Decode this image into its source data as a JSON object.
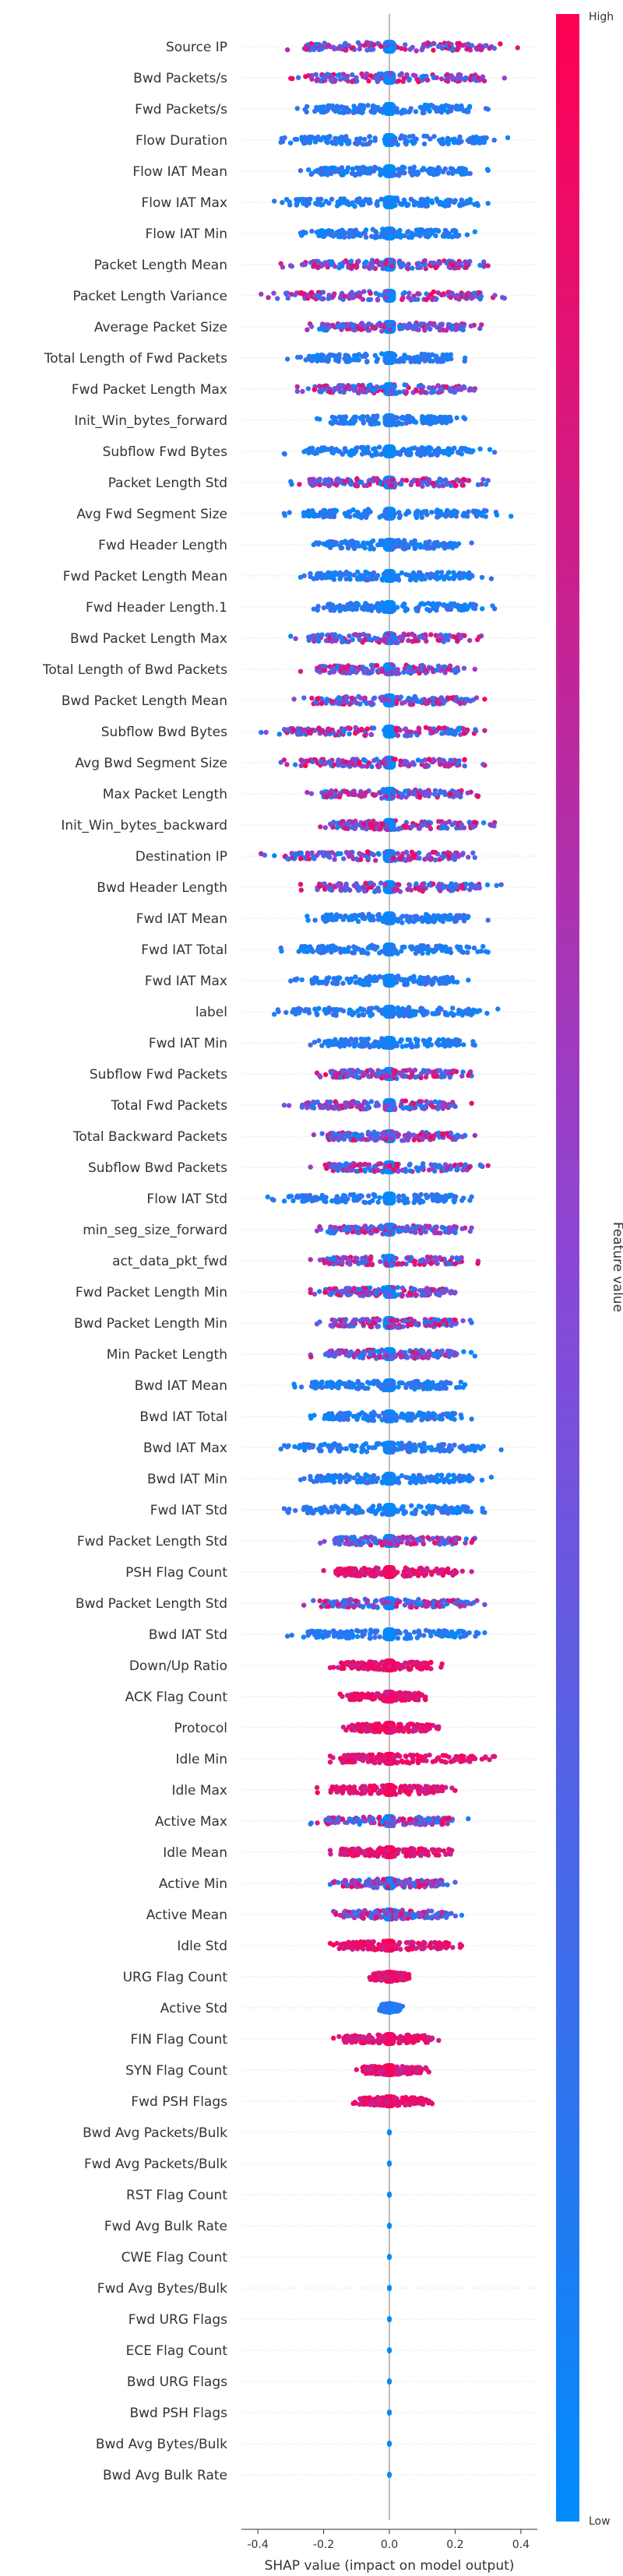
{
  "chart_data": {
    "type": "scatter",
    "subtype": "shap-beeswarm-summary",
    "xlabel": "SHAP value (impact on model output)",
    "xlim": [
      -0.45,
      0.45
    ],
    "xticks": [
      -0.4,
      -0.2,
      0.0,
      0.2,
      0.4
    ],
    "xtick_labels": [
      "-0.4",
      "-0.2",
      "0.0",
      "0.2",
      "0.4"
    ],
    "colorbar": {
      "label": "Feature value",
      "high_label": "High",
      "low_label": "Low",
      "low_color": "#008bfb",
      "high_color": "#ff0052"
    },
    "zero_line": true,
    "features": [
      {
        "name": "Source IP",
        "min": -0.31,
        "max": 0.39,
        "dom": "mixed"
      },
      {
        "name": "Bwd Packets/s",
        "min": -0.3,
        "max": 0.35,
        "dom": "mixed"
      },
      {
        "name": "Fwd Packets/s",
        "min": -0.28,
        "max": 0.3,
        "dom": "low"
      },
      {
        "name": "Flow Duration",
        "min": -0.33,
        "max": 0.36,
        "dom": "low"
      },
      {
        "name": "Flow IAT Mean",
        "min": -0.27,
        "max": 0.3,
        "dom": "low"
      },
      {
        "name": "Flow IAT Max",
        "min": -0.35,
        "max": 0.3,
        "dom": "low"
      },
      {
        "name": "Flow IAT Min",
        "min": -0.27,
        "max": 0.26,
        "dom": "low"
      },
      {
        "name": "Packet Length Mean",
        "min": -0.33,
        "max": 0.3,
        "dom": "mixed"
      },
      {
        "name": "Packet Length Variance",
        "min": -0.39,
        "max": 0.35,
        "dom": "mixed"
      },
      {
        "name": "Average Packet Size",
        "min": -0.25,
        "max": 0.28,
        "dom": "mixed"
      },
      {
        "name": "Total Length of Fwd Packets",
        "min": -0.31,
        "max": 0.23,
        "dom": "low"
      },
      {
        "name": "Fwd Packet Length Max",
        "min": -0.28,
        "max": 0.26,
        "dom": "mixed"
      },
      {
        "name": "Init_Win_bytes_forward",
        "min": -0.22,
        "max": 0.23,
        "dom": "low"
      },
      {
        "name": "Subflow Fwd Bytes",
        "min": -0.32,
        "max": 0.32,
        "dom": "low"
      },
      {
        "name": "Packet Length Std",
        "min": -0.3,
        "max": 0.3,
        "dom": "mixed"
      },
      {
        "name": "Avg Fwd Segment Size",
        "min": -0.32,
        "max": 0.37,
        "dom": "low"
      },
      {
        "name": "Fwd Header Length",
        "min": -0.23,
        "max": 0.25,
        "dom": "low"
      },
      {
        "name": "Fwd Packet Length Mean",
        "min": -0.27,
        "max": 0.31,
        "dom": "low"
      },
      {
        "name": "Fwd Header Length.1",
        "min": -0.23,
        "max": 0.32,
        "dom": "low"
      },
      {
        "name": "Bwd Packet Length Max",
        "min": -0.3,
        "max": 0.28,
        "dom": "mixed"
      },
      {
        "name": "Total Length of Bwd Packets",
        "min": -0.27,
        "max": 0.26,
        "dom": "mixed"
      },
      {
        "name": "Bwd Packet Length Mean",
        "min": -0.29,
        "max": 0.29,
        "dom": "mixed"
      },
      {
        "name": "Subflow Bwd Bytes",
        "min": -0.39,
        "max": 0.29,
        "dom": "mixed"
      },
      {
        "name": "Avg Bwd Segment Size",
        "min": -0.33,
        "max": 0.29,
        "dom": "mixed"
      },
      {
        "name": "Max Packet Length",
        "min": -0.25,
        "max": 0.27,
        "dom": "mixed"
      },
      {
        "name": "Init_Win_bytes_backward",
        "min": -0.21,
        "max": 0.32,
        "dom": "mixed"
      },
      {
        "name": "Destination IP",
        "min": -0.39,
        "max": 0.26,
        "dom": "mixed"
      },
      {
        "name": "Bwd Header Length",
        "min": -0.27,
        "max": 0.34,
        "dom": "mixed"
      },
      {
        "name": "Fwd IAT Mean",
        "min": -0.25,
        "max": 0.3,
        "dom": "low"
      },
      {
        "name": "Fwd IAT Total",
        "min": -0.33,
        "max": 0.3,
        "dom": "low"
      },
      {
        "name": "Fwd IAT Max",
        "min": -0.3,
        "max": 0.24,
        "dom": "low"
      },
      {
        "name": "label",
        "min": -0.35,
        "max": 0.33,
        "dom": "low"
      },
      {
        "name": "Fwd IAT Min",
        "min": -0.24,
        "max": 0.26,
        "dom": "low"
      },
      {
        "name": "Subflow Fwd Packets",
        "min": -0.22,
        "max": 0.25,
        "dom": "mixed"
      },
      {
        "name": "Total Fwd Packets",
        "min": -0.32,
        "max": 0.25,
        "dom": "mixed"
      },
      {
        "name": "Total Backward Packets",
        "min": -0.23,
        "max": 0.26,
        "dom": "mixed"
      },
      {
        "name": "Subflow Bwd Packets",
        "min": -0.24,
        "max": 0.3,
        "dom": "mixed"
      },
      {
        "name": "Flow IAT Std",
        "min": -0.37,
        "max": 0.25,
        "dom": "low"
      },
      {
        "name": "min_seg_size_forward",
        "min": -0.22,
        "max": 0.25,
        "dom": "mixed"
      },
      {
        "name": "act_data_pkt_fwd",
        "min": -0.24,
        "max": 0.27,
        "dom": "mixed"
      },
      {
        "name": "Fwd Packet Length Min",
        "min": -0.24,
        "max": 0.2,
        "dom": "mixed"
      },
      {
        "name": "Bwd Packet Length Min",
        "min": -0.22,
        "max": 0.25,
        "dom": "mixed"
      },
      {
        "name": "Min Packet Length",
        "min": -0.24,
        "max": 0.26,
        "dom": "mixed"
      },
      {
        "name": "Bwd IAT Mean",
        "min": -0.29,
        "max": 0.23,
        "dom": "low"
      },
      {
        "name": "Bwd IAT Total",
        "min": -0.24,
        "max": 0.25,
        "dom": "low"
      },
      {
        "name": "Bwd IAT Max",
        "min": -0.33,
        "max": 0.34,
        "dom": "low"
      },
      {
        "name": "Bwd IAT Min",
        "min": -0.27,
        "max": 0.31,
        "dom": "low"
      },
      {
        "name": "Fwd IAT Std",
        "min": -0.32,
        "max": 0.29,
        "dom": "low"
      },
      {
        "name": "Fwd Packet Length Std",
        "min": -0.21,
        "max": 0.26,
        "dom": "mixed"
      },
      {
        "name": "PSH Flag Count",
        "min": -0.2,
        "max": 0.25,
        "dom": "high"
      },
      {
        "name": "Bwd Packet Length Std",
        "min": -0.26,
        "max": 0.29,
        "dom": "mixed"
      },
      {
        "name": "Bwd IAT Std",
        "min": -0.31,
        "max": 0.29,
        "dom": "low"
      },
      {
        "name": "Down/Up Ratio",
        "min": -0.18,
        "max": 0.16,
        "dom": "high"
      },
      {
        "name": "ACK Flag Count",
        "min": -0.15,
        "max": 0.11,
        "dom": "high"
      },
      {
        "name": "Protocol",
        "min": -0.14,
        "max": 0.15,
        "dom": "high"
      },
      {
        "name": "Idle Min",
        "min": -0.18,
        "max": 0.32,
        "dom": "high"
      },
      {
        "name": "Idle Max",
        "min": -0.22,
        "max": 0.2,
        "dom": "high"
      },
      {
        "name": "Active Max",
        "min": -0.24,
        "max": 0.24,
        "dom": "mixed"
      },
      {
        "name": "Idle Mean",
        "min": -0.18,
        "max": 0.19,
        "dom": "high"
      },
      {
        "name": "Active Min",
        "min": -0.18,
        "max": 0.2,
        "dom": "mixed"
      },
      {
        "name": "Active Mean",
        "min": -0.17,
        "max": 0.22,
        "dom": "mixed"
      },
      {
        "name": "Idle Std",
        "min": -0.18,
        "max": 0.22,
        "dom": "high"
      },
      {
        "name": "URG Flag Count",
        "min": -0.06,
        "max": 0.06,
        "dom": "high"
      },
      {
        "name": "Active Std",
        "min": -0.03,
        "max": 0.04,
        "dom": "low"
      },
      {
        "name": "FIN Flag Count",
        "min": -0.17,
        "max": 0.15,
        "dom": "high"
      },
      {
        "name": "SYN Flag Count",
        "min": -0.1,
        "max": 0.12,
        "dom": "high"
      },
      {
        "name": "Fwd PSH Flags",
        "min": -0.11,
        "max": 0.13,
        "dom": "high"
      },
      {
        "name": "Bwd Avg Packets/Bulk",
        "min": 0,
        "max": 0,
        "dom": "low"
      },
      {
        "name": "Fwd Avg Packets/Bulk",
        "min": 0,
        "max": 0,
        "dom": "low"
      },
      {
        "name": "RST Flag Count",
        "min": 0,
        "max": 0,
        "dom": "low"
      },
      {
        "name": "Fwd Avg Bulk Rate",
        "min": 0,
        "max": 0,
        "dom": "low"
      },
      {
        "name": "CWE Flag Count",
        "min": 0,
        "max": 0,
        "dom": "low"
      },
      {
        "name": "Fwd Avg Bytes/Bulk",
        "min": 0,
        "max": 0,
        "dom": "low"
      },
      {
        "name": "Fwd URG Flags",
        "min": 0,
        "max": 0,
        "dom": "low"
      },
      {
        "name": "ECE Flag Count",
        "min": 0,
        "max": 0,
        "dom": "low"
      },
      {
        "name": "Bwd URG Flags",
        "min": 0,
        "max": 0,
        "dom": "low"
      },
      {
        "name": "Bwd PSH Flags",
        "min": 0,
        "max": 0,
        "dom": "low"
      },
      {
        "name": "Bwd Avg Bytes/Bulk",
        "min": 0,
        "max": 0,
        "dom": "low"
      },
      {
        "name": "Bwd Avg Bulk Rate",
        "min": 0,
        "max": 0,
        "dom": "low"
      }
    ]
  }
}
